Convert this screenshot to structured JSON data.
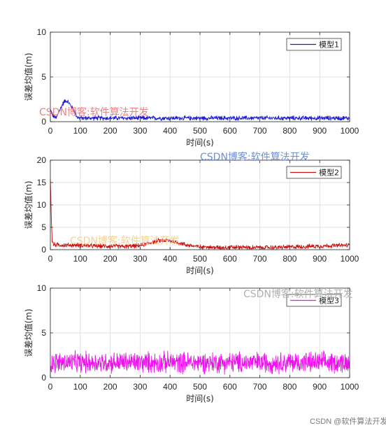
{
  "chart_data": [
    {
      "type": "line",
      "xlabel": "时间(s)",
      "ylabel": "误差均值(m)",
      "xlim": [
        0,
        1000
      ],
      "ylim": [
        0,
        10
      ],
      "xticks": [
        0,
        100,
        200,
        300,
        400,
        500,
        600,
        700,
        800,
        900,
        1000
      ],
      "yticks": [
        0,
        5,
        10
      ],
      "grid": true,
      "legend_position": "top-right",
      "series": [
        {
          "name": "模型1",
          "color": "#1a1ad6",
          "x": [
            0,
            10,
            20,
            30,
            40,
            50,
            60,
            70,
            80,
            90,
            100,
            150,
            200,
            250,
            300,
            350,
            400,
            450,
            500,
            550,
            600,
            650,
            700,
            750,
            800,
            850,
            900,
            950,
            1000
          ],
          "y": [
            1.3,
            0.6,
            0.4,
            1.2,
            1.9,
            2.4,
            2.2,
            1.7,
            1.2,
            0.5,
            0.4,
            0.4,
            0.4,
            0.4,
            0.4,
            0.4,
            0.4,
            0.4,
            0.4,
            0.4,
            0.4,
            0.4,
            0.4,
            0.4,
            0.4,
            0.4,
            0.4,
            0.4,
            0.4
          ],
          "noise": 0.3
        }
      ]
    },
    {
      "type": "line",
      "xlabel": "时间(s)",
      "ylabel": "误差均值(m)",
      "xlim": [
        0,
        1000
      ],
      "ylim": [
        0,
        20
      ],
      "xticks": [
        0,
        100,
        200,
        300,
        400,
        500,
        600,
        700,
        800,
        900,
        1000
      ],
      "yticks": [
        0,
        5,
        10,
        15,
        20
      ],
      "grid": true,
      "legend_position": "top-right",
      "series": [
        {
          "name": "模型2",
          "color": "#cc1010",
          "x": [
            0,
            3,
            6,
            10,
            20,
            50,
            100,
            150,
            200,
            250,
            300,
            330,
            360,
            380,
            400,
            430,
            460,
            500,
            550,
            600,
            650,
            700,
            750,
            800,
            850,
            900,
            950,
            1000
          ],
          "y": [
            16,
            8,
            2,
            1.2,
            1.1,
            1,
            1,
            0.8,
            0.8,
            0.7,
            0.9,
            1.5,
            2,
            2.1,
            2,
            1.5,
            1,
            0.6,
            0.5,
            0.5,
            0.5,
            0.5,
            0.5,
            0.6,
            0.7,
            0.8,
            0.9,
            1.0
          ],
          "noise": 0.6
        }
      ]
    },
    {
      "type": "line",
      "xlabel": "时间(s)",
      "ylabel": "误差均值(m)",
      "xlim": [
        0,
        1000
      ],
      "ylim": [
        0,
        10
      ],
      "xticks": [
        0,
        100,
        200,
        300,
        400,
        500,
        600,
        700,
        800,
        900,
        1000
      ],
      "yticks": [
        0,
        5,
        10
      ],
      "grid": true,
      "legend_position": "top-right",
      "series": [
        {
          "name": "模型3",
          "color": "#ee10ee",
          "x": [
            0,
            1000
          ],
          "y": [
            1.7,
            1.7
          ],
          "noise": 1.4
        }
      ]
    }
  ],
  "watermarks": [
    {
      "text": "CSDN博客:软件算法开发",
      "color": "#f08080"
    },
    {
      "text": "CSDN博客:软件算法开发",
      "color": "#6f8fd9"
    },
    {
      "text": "CSDN博客:软件算法开发",
      "color": "#f5c97c"
    },
    {
      "text": "CSDN博客:软件算法开发",
      "color": "#b0b0b0"
    }
  ],
  "footer": "CSDN @软件算法开发"
}
